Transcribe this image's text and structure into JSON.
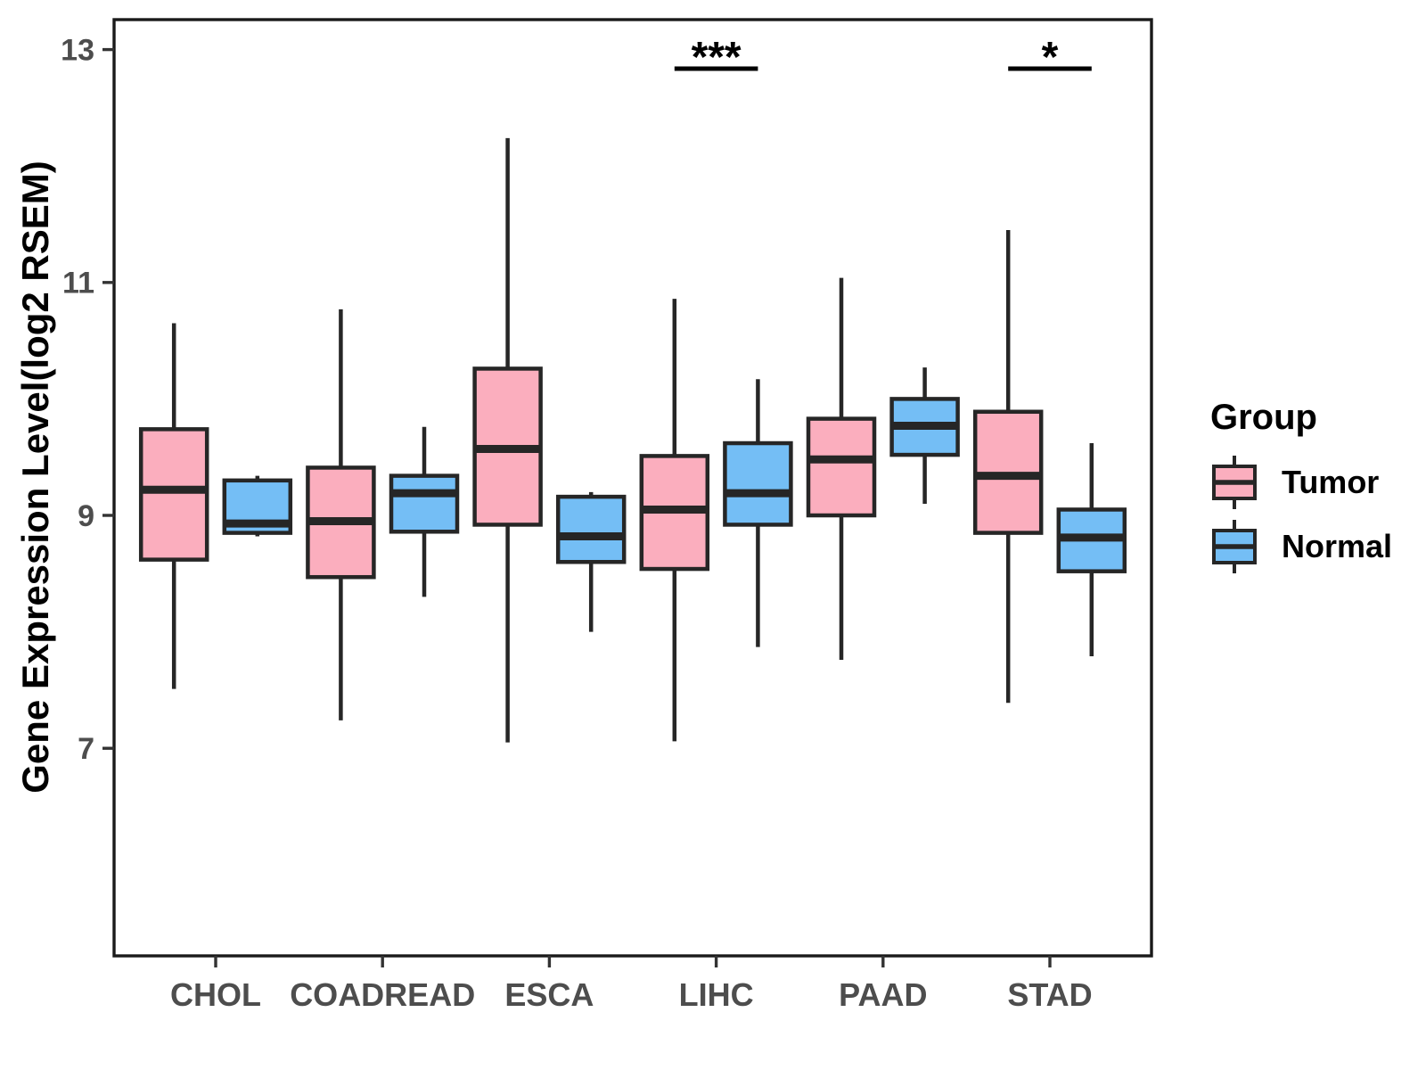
{
  "chart_data": {
    "type": "boxplot",
    "title": "",
    "xlabel": "",
    "ylabel": "Gene Expression Level(log2 RSEM)",
    "categories": [
      "CHOL",
      "COADREAD",
      "ESCA",
      "LIHC",
      "PAAD",
      "STAD"
    ],
    "y_ticks": [
      13,
      11,
      9,
      7
    ],
    "ylim": [
      5.2,
      13.3
    ],
    "grid": false,
    "legend_title": "Group",
    "legend_position": "right",
    "series": [
      {
        "name": "Tumor",
        "color": "#FBAEBE",
        "boxes": [
          {
            "whisker_low": 7.51,
            "q1": 8.62,
            "median": 9.22,
            "q3": 9.74,
            "whisker_high": 10.65
          },
          {
            "whisker_low": 7.24,
            "q1": 8.47,
            "median": 8.95,
            "q3": 9.41,
            "whisker_high": 10.77
          },
          {
            "whisker_low": 7.05,
            "q1": 8.92,
            "median": 9.57,
            "q3": 10.26,
            "whisker_high": 12.24
          },
          {
            "whisker_low": 7.06,
            "q1": 8.54,
            "median": 9.05,
            "q3": 9.51,
            "whisker_high": 10.86
          },
          {
            "whisker_low": 7.76,
            "q1": 9.0,
            "median": 9.48,
            "q3": 9.83,
            "whisker_high": 11.04
          },
          {
            "whisker_low": 7.39,
            "q1": 8.85,
            "median": 9.34,
            "q3": 9.89,
            "whisker_high": 11.45
          }
        ]
      },
      {
        "name": "Normal",
        "color": "#74BEF5",
        "boxes": [
          {
            "whisker_low": 8.82,
            "q1": 8.85,
            "median": 8.93,
            "q3": 9.3,
            "whisker_high": 9.34
          },
          {
            "whisker_low": 8.3,
            "q1": 8.86,
            "median": 9.19,
            "q3": 9.34,
            "whisker_high": 9.76
          },
          {
            "whisker_low": 8.0,
            "q1": 8.6,
            "median": 8.82,
            "q3": 9.16,
            "whisker_high": 9.2
          },
          {
            "whisker_low": 7.87,
            "q1": 8.92,
            "median": 9.19,
            "q3": 9.62,
            "whisker_high": 10.17
          },
          {
            "whisker_low": 9.1,
            "q1": 9.52,
            "median": 9.77,
            "q3": 10.0,
            "whisker_high": 10.27
          },
          {
            "whisker_low": 7.79,
            "q1": 8.52,
            "median": 8.81,
            "q3": 9.05,
            "whisker_high": 9.62
          }
        ]
      }
    ],
    "annotations": [
      {
        "category": "LIHC",
        "label": "***"
      },
      {
        "category": "STAD",
        "label": "*"
      }
    ],
    "style": {
      "box_stroke": "#262626",
      "tick_text_color": "#4d4d4d",
      "axis_title_color": "#000000"
    }
  }
}
